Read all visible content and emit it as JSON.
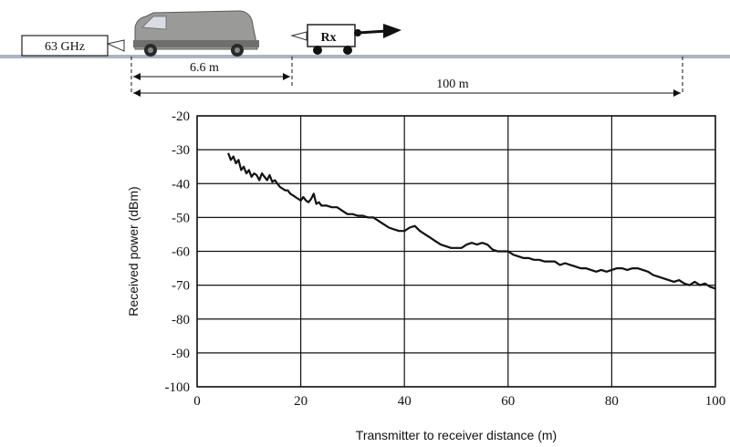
{
  "scenario": {
    "tx_label": "63 GHz",
    "rx_label": "Rx",
    "short_distance": "6.6 m",
    "long_distance": "100 m"
  },
  "chart_data": {
    "type": "line",
    "title": "",
    "xlabel": "Transmitter to receiver distance (m)",
    "ylabel": "Received power (dBm)",
    "xlim": [
      0,
      100
    ],
    "ylim": [
      -100,
      -20
    ],
    "xticks": [
      "0",
      "20",
      "40",
      "60",
      "80",
      "100"
    ],
    "yticks": [
      "-20",
      "-30",
      "-40",
      "-50",
      "-60",
      "-70",
      "-80",
      "-90",
      "-100"
    ],
    "grid": true,
    "legend": "none",
    "series": [
      {
        "color": "#111111",
        "x": [
          6,
          6.5,
          7,
          7.5,
          8,
          8.5,
          9,
          9.5,
          10,
          10.5,
          11,
          11.5,
          12,
          12.5,
          13,
          13.5,
          14,
          14.5,
          15,
          15.5,
          16,
          16.5,
          17,
          17.5,
          18,
          18.5,
          19,
          19.5,
          20,
          20.5,
          21,
          21.5,
          22,
          22.5,
          23,
          23.5,
          24,
          25,
          26,
          27,
          28,
          29,
          30,
          31,
          32,
          33,
          34,
          35,
          36,
          37,
          38,
          39,
          40,
          41,
          42,
          43,
          44,
          45,
          46,
          47,
          48,
          49,
          50,
          51,
          52,
          53,
          54,
          55,
          56,
          57,
          58,
          59,
          60,
          61,
          62,
          63,
          64,
          65,
          66,
          67,
          68,
          69,
          70,
          71,
          72,
          73,
          74,
          75,
          76,
          77,
          78,
          79,
          80,
          81,
          82,
          83,
          84,
          85,
          86,
          87,
          88,
          89,
          90,
          91,
          92,
          93,
          94,
          95,
          96,
          97,
          98,
          99,
          100
        ],
        "y": [
          -31,
          -33,
          -32,
          -34,
          -33,
          -36,
          -35,
          -37,
          -36,
          -38,
          -37,
          -37.5,
          -39,
          -37,
          -38,
          -39,
          -37.5,
          -39.5,
          -39,
          -40,
          -41,
          -41.5,
          -42,
          -42,
          -43,
          -43.5,
          -44,
          -44.5,
          -45,
          -44,
          -45,
          -45.5,
          -44.5,
          -43,
          -46,
          -45.5,
          -46.5,
          -46.5,
          -47,
          -47,
          -48,
          -49,
          -49,
          -49.5,
          -49.5,
          -50,
          -50,
          -51,
          -52,
          -53,
          -53.5,
          -54,
          -54,
          -53,
          -52.5,
          -54,
          -55,
          -56,
          -57,
          -58,
          -58.5,
          -59,
          -59,
          -59,
          -58,
          -57.5,
          -58,
          -57.5,
          -58,
          -59.5,
          -60,
          -60,
          -60,
          -61,
          -61.5,
          -62,
          -62,
          -62.5,
          -62.5,
          -63,
          -63,
          -63,
          -64,
          -63.5,
          -64,
          -64.5,
          -65,
          -65,
          -65.5,
          -66,
          -65.5,
          -66,
          -65.5,
          -65,
          -65,
          -65.5,
          -65,
          -65,
          -65.5,
          -66,
          -67,
          -67.5,
          -68,
          -68.5,
          -69,
          -68.5,
          -69.5,
          -70,
          -69,
          -70,
          -69.5,
          -70.5,
          -71
        ]
      }
    ]
  }
}
